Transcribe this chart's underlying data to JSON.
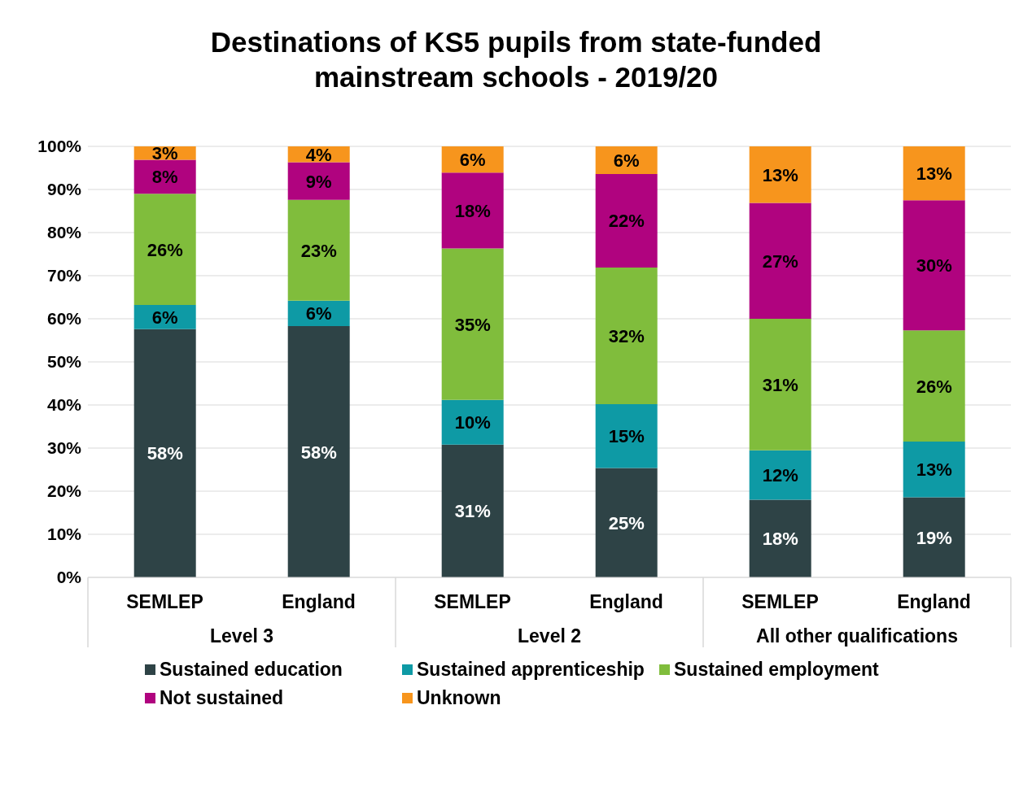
{
  "chart_data": {
    "type": "bar",
    "stacked": true,
    "title": "Destinations of KS5 pupils from state-funded\nmainstream schools - 2019/20",
    "categories": [
      "SEMLEP",
      "England",
      "SEMLEP",
      "England",
      "SEMLEP",
      "England"
    ],
    "annotations": [
      "Level 3",
      "Level 2",
      "All other qualifications"
    ],
    "series": [
      {
        "name": "Sustained education",
        "color": "#2e4346",
        "values": [
          57.6,
          58.3,
          30.8,
          25.4,
          18.0,
          18.6
        ],
        "value_labels": [
          "58%",
          "58%",
          "31%",
          "25%",
          "18%",
          "19%"
        ]
      },
      {
        "name": "Sustained apprenticeship",
        "color": "#0e9aa5",
        "values": [
          5.6,
          5.9,
          10.4,
          14.8,
          11.5,
          12.9
        ],
        "value_labels": [
          "6%",
          "6%",
          "10%",
          "15%",
          "12%",
          "13%"
        ]
      },
      {
        "name": "Sustained employment",
        "color": "#80bd3c",
        "values": [
          25.8,
          23.4,
          35.1,
          31.7,
          30.5,
          25.8
        ],
        "value_labels": [
          "26%",
          "23%",
          "35%",
          "32%",
          "31%",
          "26%"
        ]
      },
      {
        "name": "Not sustained",
        "color": "#b0037f",
        "values": [
          7.9,
          8.7,
          17.6,
          21.7,
          26.9,
          30.2
        ],
        "value_labels": [
          "8%",
          "9%",
          "18%",
          "22%",
          "27%",
          "30%"
        ]
      },
      {
        "name": "Unknown",
        "color": "#f7951d",
        "values": [
          3.1,
          3.7,
          6.1,
          6.4,
          13.1,
          12.5
        ],
        "value_labels": [
          "3%",
          "4%",
          "6%",
          "6%",
          "13%",
          "13%"
        ]
      }
    ],
    "ylim": [
      0,
      100
    ],
    "yticks": [
      {
        "value": 0,
        "label": "0%"
      },
      {
        "value": 10,
        "label": "10%"
      },
      {
        "value": 20,
        "label": "20%"
      },
      {
        "value": 30,
        "label": "30%"
      },
      {
        "value": 40,
        "label": "40%"
      },
      {
        "value": 50,
        "label": "50%"
      },
      {
        "value": 60,
        "label": "60%"
      },
      {
        "value": 70,
        "label": "70%"
      },
      {
        "value": 80,
        "label": "80%"
      },
      {
        "value": 90,
        "label": "90%"
      },
      {
        "value": 100,
        "label": "100%"
      }
    ],
    "grid": "y",
    "legend": "bottom"
  }
}
